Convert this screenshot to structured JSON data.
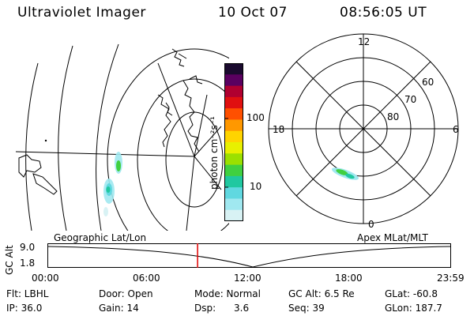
{
  "header": {
    "instrument": "Ultraviolet Imager",
    "date": "10 Oct 07",
    "time": "08:56:05 UT"
  },
  "colorbar": {
    "unit_label": "photon cm⁻²s⁻¹",
    "ticks": [
      "100",
      "10"
    ],
    "colors": [
      "#1a0a2e",
      "#5a0060",
      "#b00030",
      "#e01010",
      "#ff5000",
      "#ff9800",
      "#ffd400",
      "#e8f000",
      "#9be000",
      "#40d040",
      "#20c8a0",
      "#60d8e0",
      "#a0e8f0",
      "#d8f2f4"
    ]
  },
  "polar_plot": {
    "mlt_labels": {
      "top": "12",
      "left": "18",
      "right": "6",
      "bottom": "0"
    },
    "lat_labels": [
      "60",
      "70",
      "80"
    ]
  },
  "timeline": {
    "left_label": "Geographic Lat/Lon",
    "right_label": "Apex MLat/MLT",
    "axis_label": "GC Alt",
    "y_top": "9.0",
    "y_bottom": "1.8",
    "x_ticks": [
      "00:00",
      "06:00",
      "12:00",
      "18:00",
      "23:59"
    ],
    "marker_time_hours": 8.93,
    "marker_color": "#e00000"
  },
  "footer": {
    "row1": [
      "Flt: LBHL",
      "Door: Open",
      "Mode: Normal",
      "GC Alt: 6.5 Re",
      "GLat: -60.8"
    ],
    "row2": [
      "IP: 36.0",
      "Gain: 14",
      "Dsp:      3.6",
      "Seq: 39",
      "GLon: 187.7"
    ]
  }
}
